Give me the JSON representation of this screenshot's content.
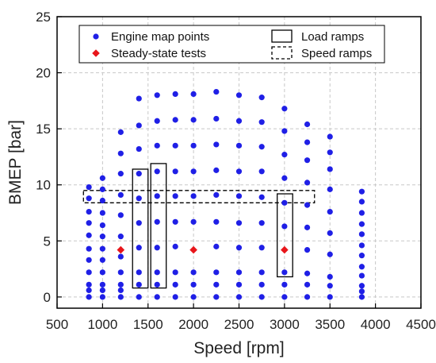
{
  "chart_data": {
    "type": "scatter",
    "xlabel": "Speed [rpm]",
    "ylabel": "BMEP [bar]",
    "xlim": [
      500,
      4500
    ],
    "ylim": [
      -1,
      25
    ],
    "xticks": [
      500,
      1000,
      1500,
      2000,
      2500,
      3000,
      3500,
      4000,
      4500
    ],
    "yticks": [
      0,
      5,
      10,
      15,
      20,
      25
    ],
    "grid": "dashed",
    "legend_position": "top",
    "colors": {
      "map": "#1f1fe6",
      "steady": "#e8161b",
      "frame": "#000000",
      "grid": "#c8c8c8"
    },
    "series": [
      {
        "name": "Engine map points",
        "marker": "circle",
        "columns": [
          {
            "x": 850,
            "y": [
              0,
              0.6,
              1.1,
              2.2,
              3.3,
              4.3,
              5.5,
              6.6,
              7.6,
              8.8,
              9.8
            ]
          },
          {
            "x": 1000,
            "y": [
              0,
              0.6,
              1.1,
              2.2,
              3.3,
              4.3,
              5.4,
              6.4,
              7.5,
              8.6,
              9.6,
              10.6
            ]
          },
          {
            "x": 1200,
            "y": [
              0,
              0.6,
              1.1,
              2.2,
              3.6,
              5.4,
              7.3,
              9.1,
              11.0,
              12.8,
              14.7
            ]
          },
          {
            "x": 1400,
            "y": [
              0,
              1.1,
              2.2,
              4.4,
              6.6,
              8.8,
              11.0,
              13.2,
              15.3,
              17.7
            ]
          },
          {
            "x": 1600,
            "y": [
              0,
              1.1,
              2.2,
              4.4,
              6.7,
              9.0,
              11.2,
              13.5,
              15.7,
              18.0
            ]
          },
          {
            "x": 1800,
            "y": [
              0,
              1.1,
              2.2,
              4.5,
              6.7,
              9.0,
              11.2,
              13.5,
              15.8,
              18.1
            ]
          },
          {
            "x": 2000,
            "y": [
              0,
              1.1,
              2.2,
              6.7,
              9.0,
              11.2,
              13.5,
              15.8,
              18.1
            ]
          },
          {
            "x": 2250,
            "y": [
              0,
              1.1,
              2.2,
              4.5,
              6.7,
              9.1,
              11.3,
              13.6,
              15.9,
              18.3
            ]
          },
          {
            "x": 2500,
            "y": [
              0,
              1.1,
              2.2,
              4.4,
              6.6,
              9.0,
              11.2,
              13.5,
              15.7,
              18.0
            ]
          },
          {
            "x": 2750,
            "y": [
              0,
              1.1,
              2.2,
              4.4,
              6.6,
              8.9,
              11.2,
              13.4,
              15.6,
              17.8
            ]
          },
          {
            "x": 3000,
            "y": [
              0,
              1.1,
              2.2,
              6.3,
              8.4,
              10.6,
              12.7,
              14.8,
              16.8
            ]
          },
          {
            "x": 3250,
            "y": [
              0,
              1.1,
              2.1,
              4.2,
              6.2,
              8.2,
              10.2,
              12.2,
              13.8,
              15.4
            ]
          },
          {
            "x": 3500,
            "y": [
              0,
              1.0,
              1.8,
              3.8,
              5.7,
              7.6,
              9.6,
              11.4,
              12.9,
              14.3
            ]
          },
          {
            "x": 3850,
            "y": [
              0,
              0.5,
              1.0,
              1.9,
              2.7,
              3.7,
              4.6,
              5.6,
              6.5,
              7.5,
              8.5,
              9.4
            ]
          }
        ]
      },
      {
        "name": "Steady-state tests",
        "marker": "diamond",
        "points": [
          {
            "x": 1200,
            "y": 4.2
          },
          {
            "x": 2000,
            "y": 4.2
          },
          {
            "x": 3000,
            "y": 4.2
          }
        ]
      },
      {
        "name": "Load ramps",
        "marker": "solid-rectangle",
        "regions": [
          {
            "x": [
              1330,
              1500
            ],
            "y": [
              0.8,
              11.4
            ]
          },
          {
            "x": [
              1530,
              1700
            ],
            "y": [
              0.8,
              11.9
            ]
          },
          {
            "x": [
              2920,
              3090
            ],
            "y": [
              1.8,
              9.2
            ]
          }
        ]
      },
      {
        "name": "Speed ramps",
        "marker": "dashed-rectangle",
        "regions": [
          {
            "x": [
              790,
              3330
            ],
            "y": [
              8.4,
              9.5
            ]
          }
        ]
      }
    ]
  }
}
